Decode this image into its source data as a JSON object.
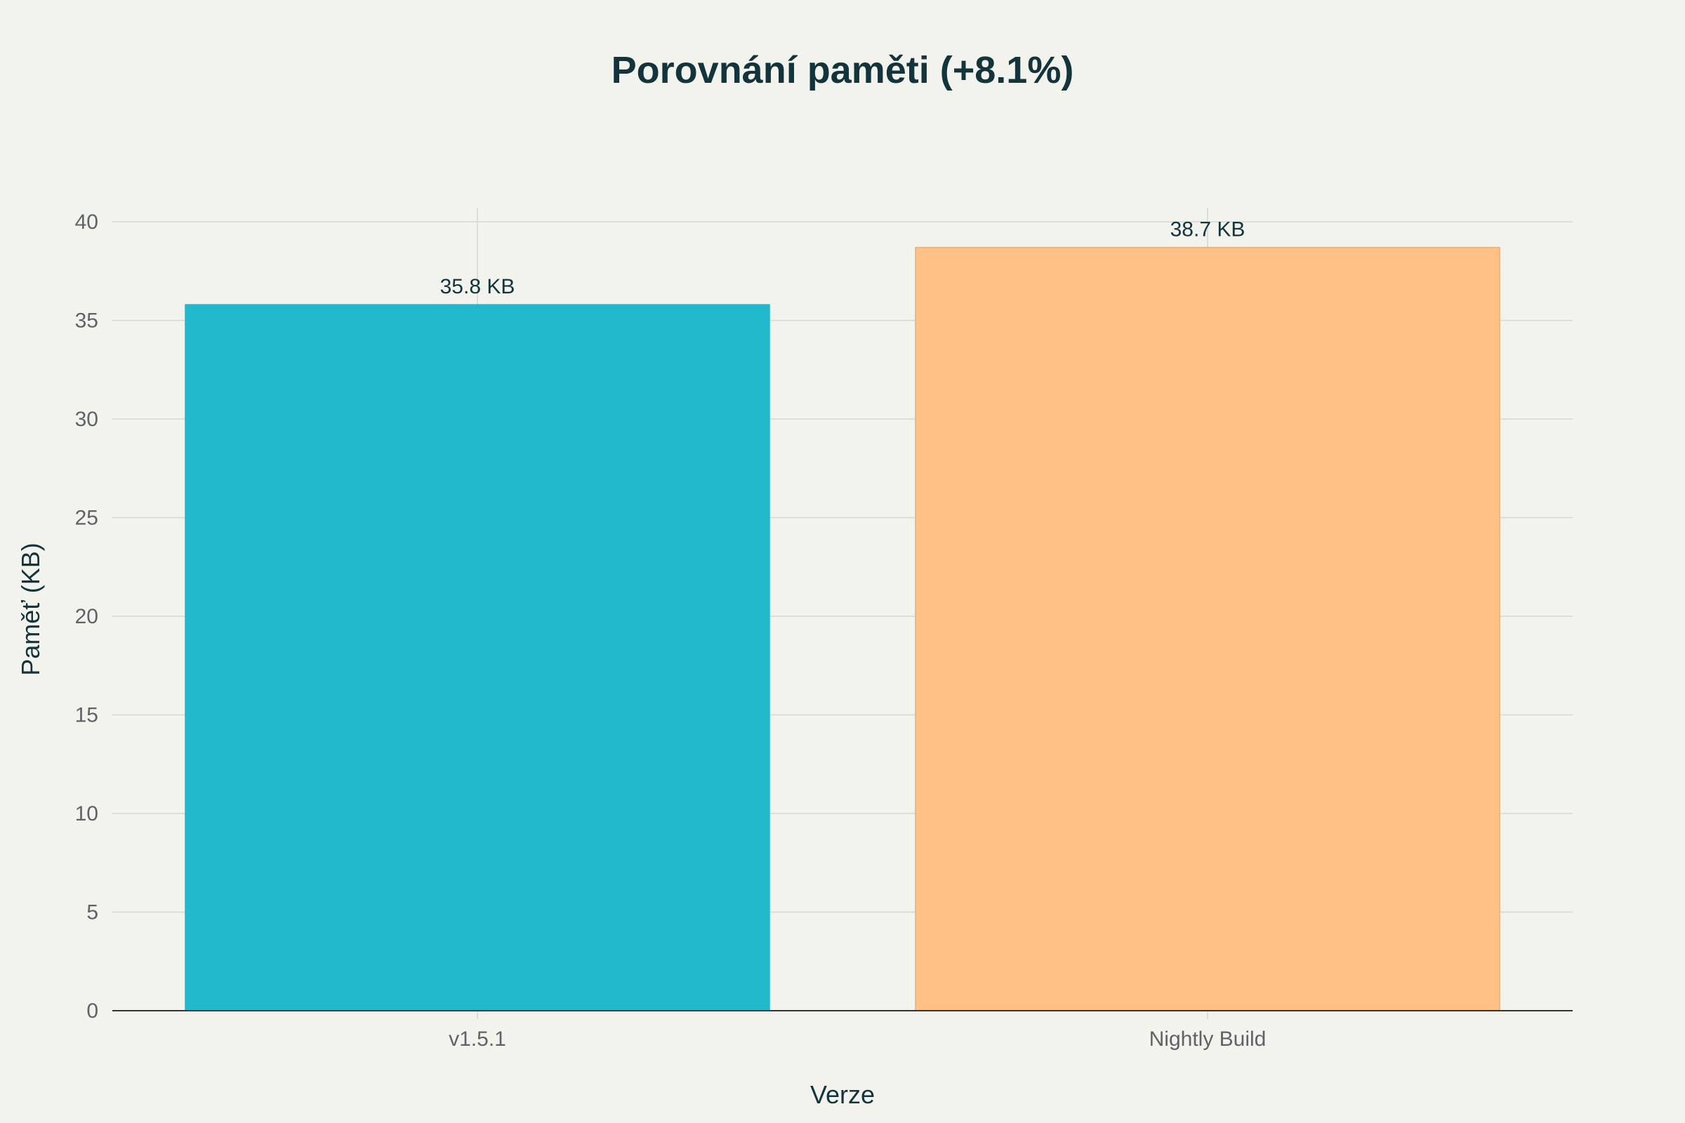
{
  "chart_data": {
    "type": "bar",
    "title": "Porovnání paměti (+8.1%)",
    "xlabel": "Verze",
    "ylabel": "Paměť (KB)",
    "categories": [
      "v1.5.1",
      "Nightly Build"
    ],
    "values": [
      35.8,
      38.7
    ],
    "data_labels": [
      "35.8 KB",
      "38.7 KB"
    ],
    "colors": [
      "#21b8cc",
      "#ffc185"
    ],
    "ylim": [
      0,
      40
    ],
    "yticks": [
      0,
      5,
      10,
      15,
      20,
      25,
      30,
      35,
      40
    ],
    "grid": true,
    "legend": "none"
  }
}
